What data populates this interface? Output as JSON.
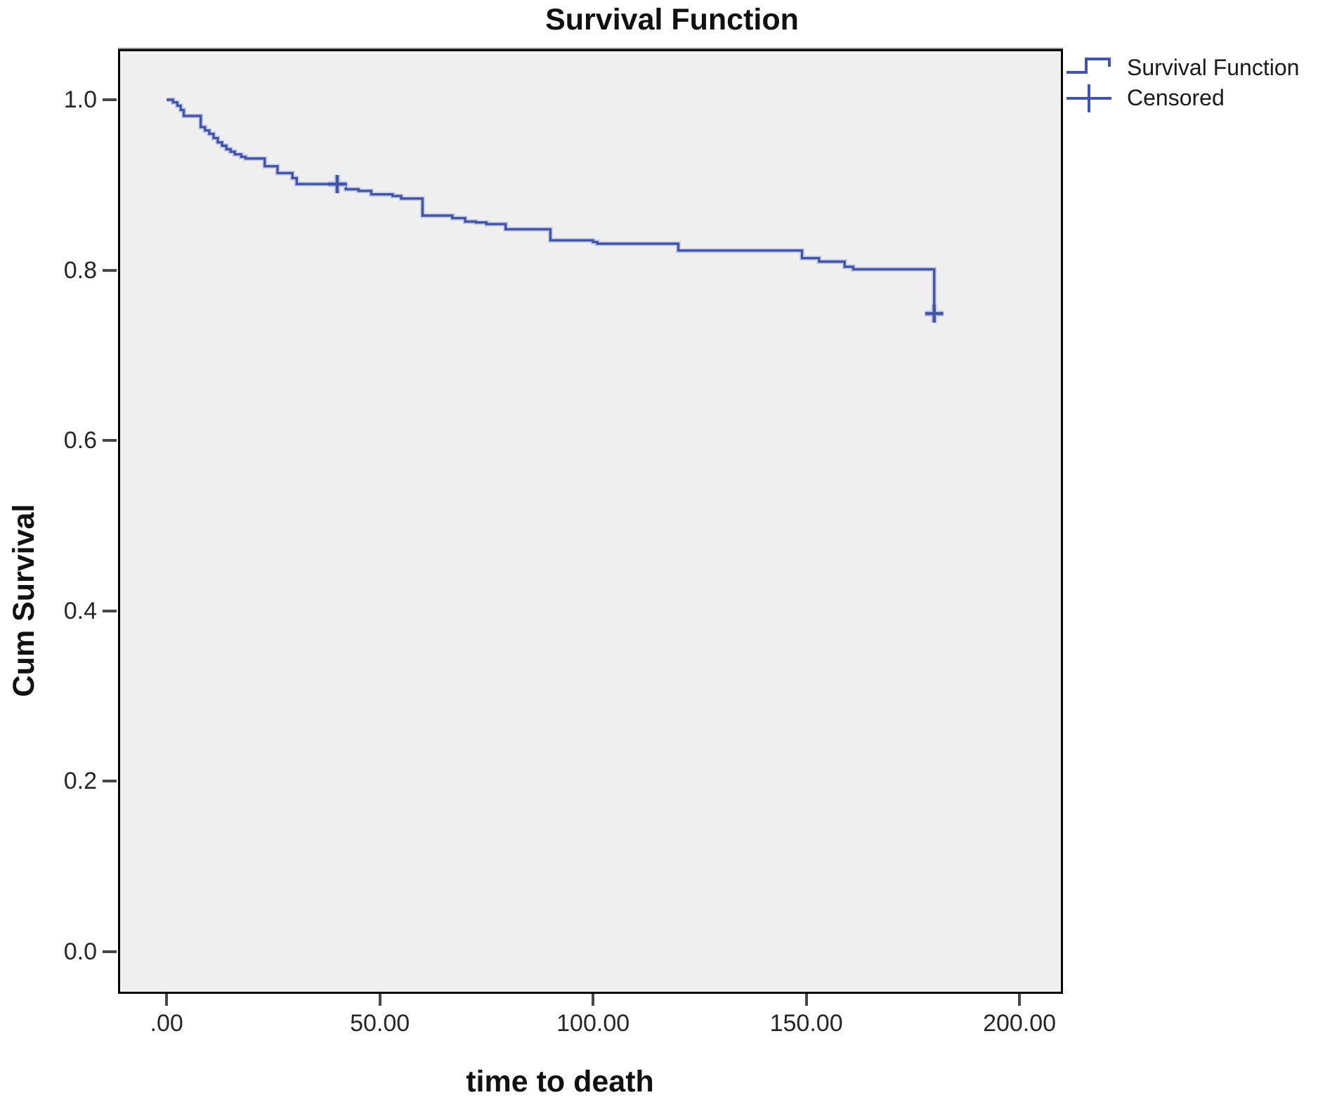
{
  "page": {
    "title": "Survival Function"
  },
  "chart_data": {
    "type": "line",
    "subtype": "kaplan-meier-step",
    "title": "Survival Function",
    "xlabel": "time to death",
    "ylabel": "Cum Survival",
    "xlim": [
      -11.4,
      210.2
    ],
    "ylim": [
      -0.0495,
      1.0594
    ],
    "grid": false,
    "legend_position": "top-right-outside",
    "xticks": [
      {
        "value": 0,
        "label": ".00"
      },
      {
        "value": 50,
        "label": "50.00"
      },
      {
        "value": 100,
        "label": "100.00"
      },
      {
        "value": 150,
        "label": "150.00"
      },
      {
        "value": 200,
        "label": "200.00"
      }
    ],
    "yticks": [
      {
        "value": 1.0,
        "label": "1.0"
      },
      {
        "value": 0.8,
        "label": "0.8"
      },
      {
        "value": 0.6,
        "label": "0.6"
      },
      {
        "value": 0.4,
        "label": "0.4"
      },
      {
        "value": 0.2,
        "label": "0.2"
      },
      {
        "value": 0.0,
        "label": "0.0"
      }
    ],
    "legend": [
      {
        "label": "Survival Function",
        "symbol": "step-line"
      },
      {
        "label": "Censored",
        "symbol": "plus"
      }
    ],
    "series": [
      {
        "name": "Survival Function",
        "type": "step",
        "points": [
          [
            0,
            1.0
          ],
          [
            1.5,
            0.997
          ],
          [
            2.5,
            0.993
          ],
          [
            3.3,
            0.988
          ],
          [
            4,
            0.981
          ],
          [
            8,
            0.968
          ],
          [
            9,
            0.964
          ],
          [
            10,
            0.96
          ],
          [
            11,
            0.955
          ],
          [
            12,
            0.95
          ],
          [
            13,
            0.946
          ],
          [
            14,
            0.942
          ],
          [
            15,
            0.939
          ],
          [
            16,
            0.936
          ],
          [
            17.5,
            0.933
          ],
          [
            18.5,
            0.931
          ],
          [
            23,
            0.922
          ],
          [
            26,
            0.914
          ],
          [
            29.5,
            0.908
          ],
          [
            30.5,
            0.901
          ],
          [
            42,
            0.895
          ],
          [
            45,
            0.893
          ],
          [
            48,
            0.889
          ],
          [
            53,
            0.887
          ],
          [
            55,
            0.884
          ],
          [
            60,
            0.864
          ],
          [
            67,
            0.861
          ],
          [
            70,
            0.857
          ],
          [
            72.5,
            0.856
          ],
          [
            75,
            0.854
          ],
          [
            79.5,
            0.848
          ],
          [
            90,
            0.835
          ],
          [
            100,
            0.833
          ],
          [
            101,
            0.831
          ],
          [
            120,
            0.823
          ],
          [
            149,
            0.814
          ],
          [
            153,
            0.81
          ],
          [
            159,
            0.804
          ],
          [
            161,
            0.801
          ],
          [
            180,
            0.749
          ]
        ]
      }
    ],
    "censored_points": [
      [
        40,
        0.901
      ],
      [
        180,
        0.749
      ]
    ],
    "colors": {
      "line": "#4254a7",
      "line_highlight": "#c7cde6",
      "plot_background": "#efefef",
      "plot_border": "#000000",
      "tick": "#474747",
      "text": "#1a1a1a"
    }
  }
}
